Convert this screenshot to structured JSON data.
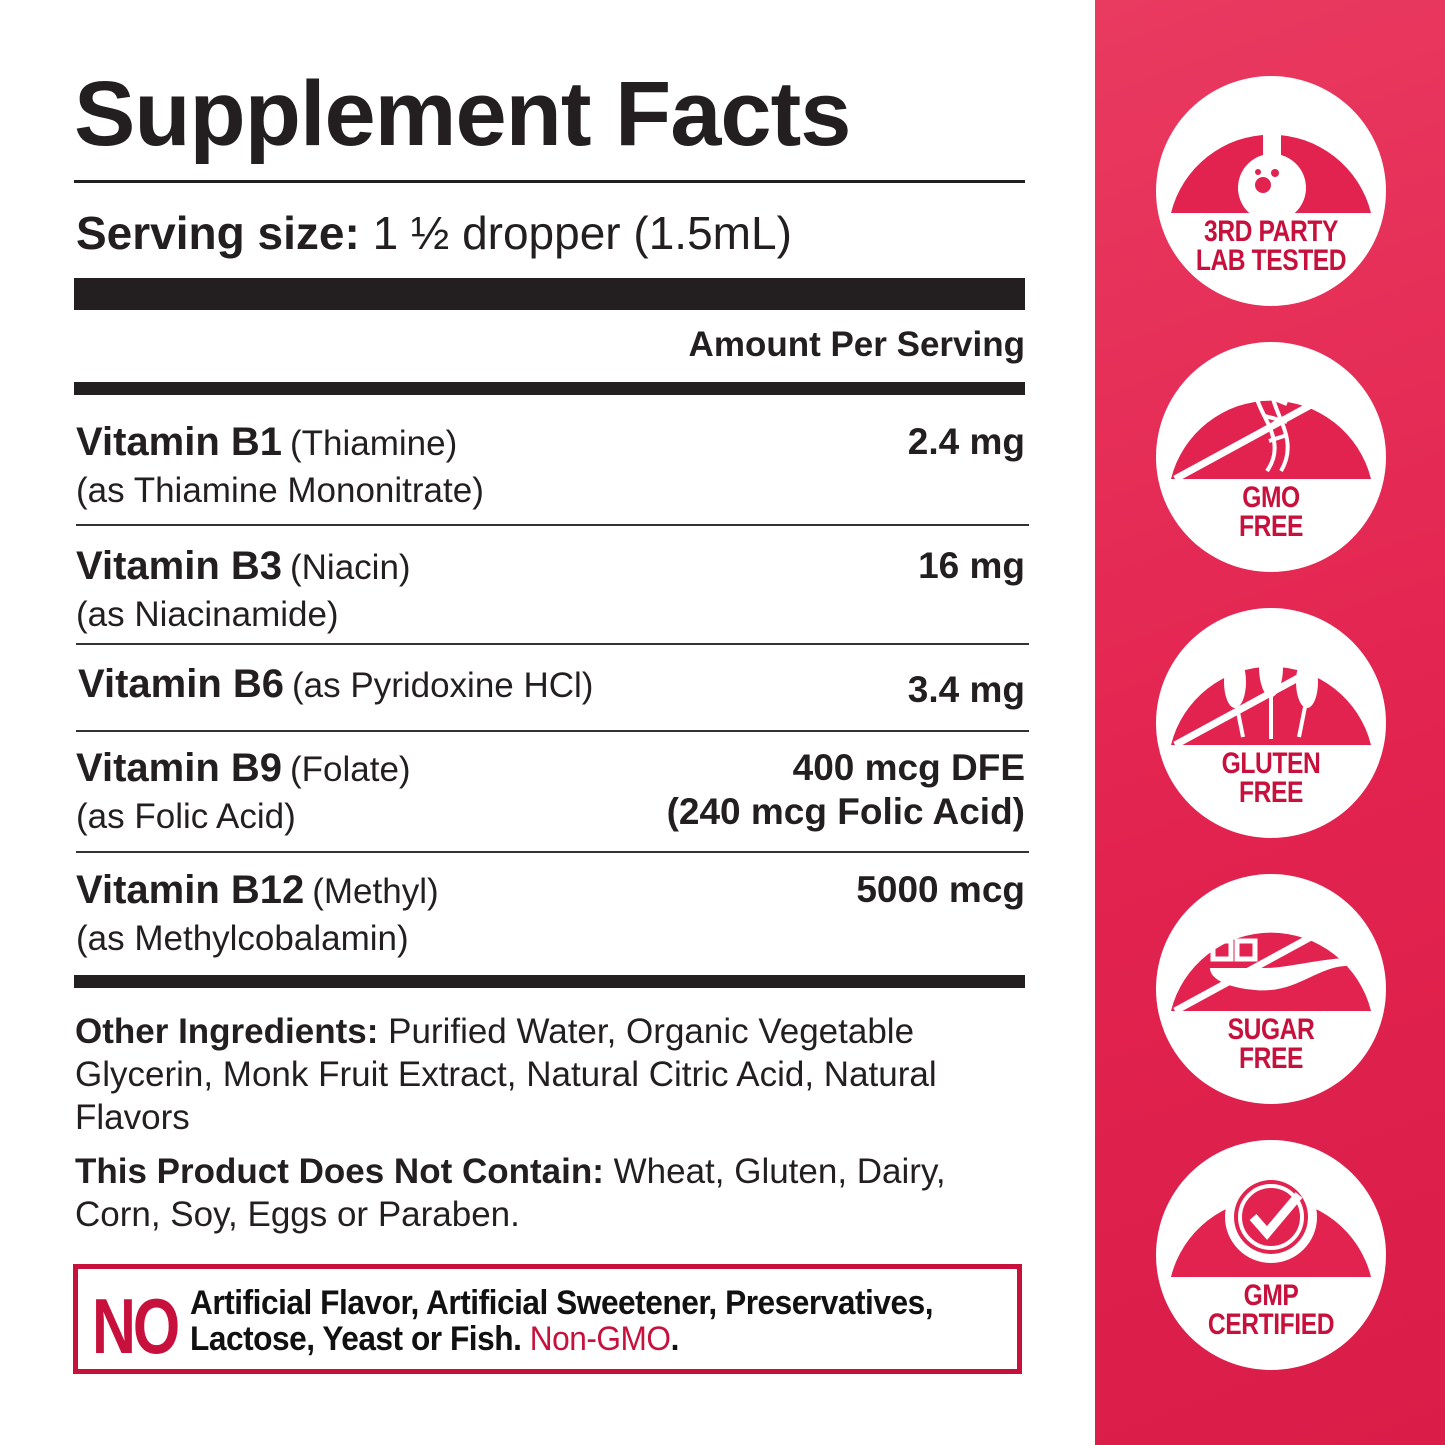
{
  "title": "Supplement Facts",
  "serving": {
    "label": "Serving size:",
    "value": "1 ½ dropper (1.5mL)"
  },
  "amount_header": "Amount Per Serving",
  "rows": [
    {
      "name": "Vitamin B1",
      "paren": "(Thiamine)",
      "sub": "(as Thiamine Mononitrate)",
      "amount": "2.4 mg"
    },
    {
      "name": "Vitamin B3",
      "paren": "(Niacin)",
      "sub": "(as Niacinamide)",
      "amount": "16 mg"
    },
    {
      "name": "Vitamin B6",
      "paren": "(as Pyridoxine HCl)",
      "sub": "",
      "amount": "3.4 mg"
    },
    {
      "name": "Vitamin B9",
      "paren": "(Folate)",
      "sub": "(as Folic Acid)",
      "amount": "400 mcg DFE",
      "amount2": "(240 mcg Folic Acid)"
    },
    {
      "name": "Vitamin B12",
      "paren": "(Methyl)",
      "sub": "(as Methylcobalamin)",
      "amount": "5000 mcg"
    }
  ],
  "other": {
    "label": "Other Ingredients:",
    "text": " Purified Water, Organic Vegetable Glycerin, Monk Fruit Extract, Natural Citric Acid, Natural Flavors"
  },
  "not_contain": {
    "label": "This Product Does Not Contain:",
    "text": " Wheat, Gluten, Dairy, Corn, Soy, Eggs or Paraben."
  },
  "no_box": {
    "no": "NO",
    "line1": "Artificial Flavor, Artificial Sweetener, Preservatives,",
    "line2": "Lactose, Yeast or Fish. ",
    "highlight": "Non-GMO",
    "end": "."
  },
  "badges": [
    {
      "icon": "flask-icon",
      "line1": "3RD PARTY",
      "line2": "LAB TESTED"
    },
    {
      "icon": "dna-icon",
      "line1": "GMO",
      "line2": "FREE"
    },
    {
      "icon": "wheat-icon",
      "line1": "GLUTEN",
      "line2": "FREE"
    },
    {
      "icon": "sugar-spoon-icon",
      "line1": "SUGAR",
      "line2": "FREE"
    },
    {
      "icon": "certified-check-icon",
      "line1": "GMP",
      "line2": "CERTIFIED"
    }
  ],
  "colors": {
    "accent": "#c8103c",
    "panel": "#e2234f",
    "text": "#231f20"
  }
}
